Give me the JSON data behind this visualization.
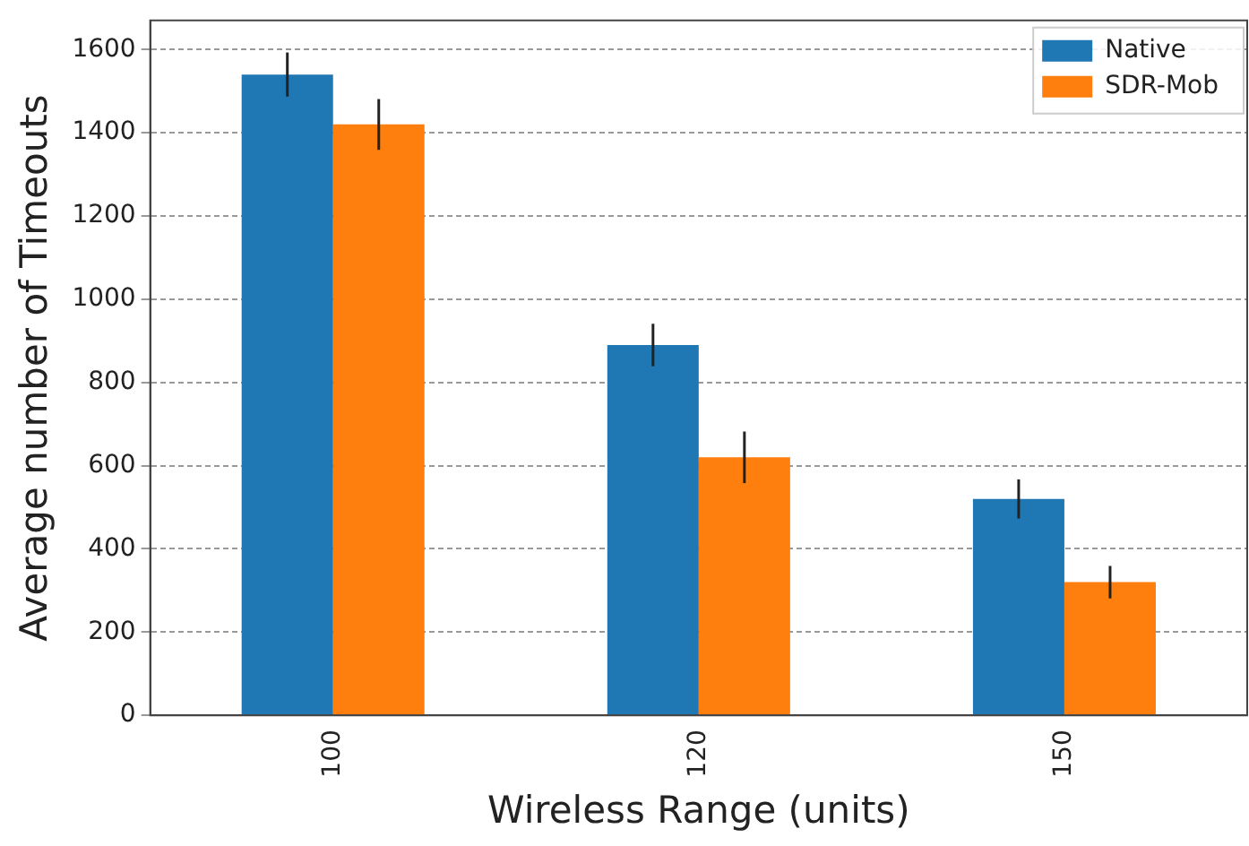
{
  "chart_data": {
    "type": "bar",
    "xlabel": "Wireless Range (units)",
    "ylabel": "Average number of Timeouts",
    "categories": [
      "100",
      "120",
      "150"
    ],
    "series": [
      {
        "name": "Native",
        "color": "#1f77b4",
        "values": [
          1540,
          890,
          520
        ],
        "errors": [
          53,
          51,
          47
        ]
      },
      {
        "name": "SDR-Mob",
        "color": "#ff7f0e",
        "values": [
          1420,
          620,
          320
        ],
        "errors": [
          61,
          62,
          39
        ]
      }
    ],
    "ylim": [
      0,
      1670
    ],
    "yticks": [
      0,
      200,
      400,
      600,
      800,
      1000,
      1200,
      1400,
      1600
    ],
    "grid": "y",
    "legend": "top right"
  }
}
